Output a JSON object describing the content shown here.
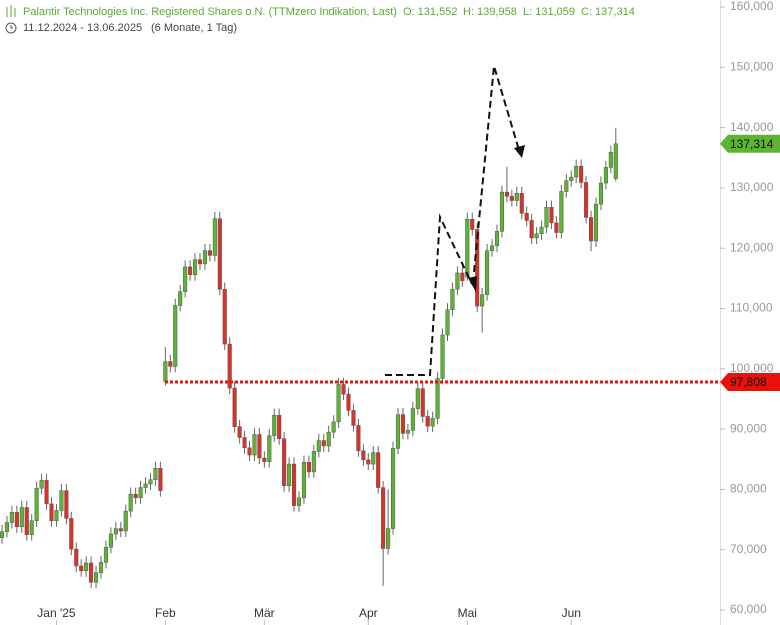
{
  "chart_data": {
    "type": "candlestick",
    "title": "Palantir Technologies Inc. Registered Shares o.N. (TTMzero Indikation, Last)",
    "ohlc_labels": [
      "O: 131,552",
      "H: 139,958",
      "L: 131,059",
      "C: 137,314"
    ],
    "date_range": "11.12.2024 - 13.06.2025",
    "period": "(6 Monate, 1 Tag)",
    "categories": [
      null,
      null,
      null,
      null,
      null,
      null,
      null,
      null,
      null,
      null,
      null,
      "Jan '25",
      null,
      null,
      null,
      null,
      null,
      null,
      null,
      null,
      null,
      null,
      null,
      null,
      null,
      null,
      null,
      null,
      null,
      null,
      null,
      null,
      null,
      "Feb",
      null,
      null,
      null,
      null,
      null,
      null,
      null,
      null,
      null,
      null,
      null,
      null,
      null,
      null,
      null,
      null,
      null,
      null,
      null,
      "Mär",
      null,
      null,
      null,
      null,
      null,
      null,
      null,
      null,
      null,
      null,
      null,
      null,
      null,
      null,
      null,
      null,
      null,
      null,
      null,
      null,
      "Apr",
      null,
      null,
      null,
      null,
      null,
      null,
      null,
      null,
      null,
      null,
      null,
      null,
      null,
      null,
      null,
      null,
      null,
      null,
      null,
      "Mai",
      null,
      null,
      null,
      null,
      null,
      null,
      null,
      null,
      null,
      null,
      null,
      null,
      null,
      null,
      null,
      null,
      null,
      null,
      null,
      null,
      "Jun",
      null,
      null,
      null,
      null,
      null,
      null,
      null,
      null,
      null
    ],
    "open": [
      72.0,
      73.0,
      74.5,
      76.2,
      73.8,
      77.0,
      72.5,
      74.8,
      80.2,
      81.5,
      77.6,
      74.8,
      76.5,
      79.8,
      75.2,
      70.1,
      67.3,
      66.5,
      67.8,
      64.6,
      66.2,
      67.9,
      70.4,
      72.6,
      73.5,
      73.1,
      76.4,
      79.2,
      78.6,
      80.3,
      80.9,
      81.6,
      83.5,
      97.9,
      101.2,
      100.4,
      110.5,
      112.8,
      116.9,
      115.6,
      118.1,
      117.4,
      119.6,
      118.8,
      124.9,
      113.2,
      104.1,
      96.8,
      90.4,
      88.6,
      86.9,
      85.7,
      89.1,
      85.2,
      84.6,
      88.9,
      92.3,
      88.4,
      80.6,
      84.2,
      77.3,
      78.6,
      84.5,
      82.9,
      86.3,
      88.1,
      87.2,
      89.5,
      91.2,
      97.4,
      95.8,
      93.1,
      90.6,
      86.4,
      84.9,
      84.2,
      86.1,
      80.3,
      70.2,
      73.5,
      86.8,
      92.4,
      89.3,
      89.8,
      93.4,
      96.7,
      92.1,
      90.5,
      91.8,
      98.4,
      105.6,
      109.8,
      113.2,
      115.9,
      115.2,
      124.8,
      123.1,
      110.4,
      112.3,
      119.6,
      120.4,
      122.8,
      129.3,
      128.6,
      127.9,
      129.1,
      125.8,
      124.6,
      121.7,
      122.4,
      123.5,
      126.8,
      124.2,
      122.6,
      129.4,
      131.2,
      131.8,
      133.6,
      130.9,
      125.1,
      121.2,
      127.3,
      130.8,
      133.4,
      131.552
    ],
    "high": [
      74.1,
      75.6,
      77.3,
      77.3,
      78.1,
      78.1,
      75.9,
      81.3,
      82.6,
      82.6,
      78.7,
      77.6,
      80.9,
      80.9,
      76.3,
      71.2,
      68.4,
      68.9,
      68.9,
      67.3,
      69.0,
      71.5,
      73.7,
      74.6,
      74.6,
      77.5,
      80.3,
      80.3,
      81.4,
      82.0,
      82.7,
      84.6,
      84.6,
      103.6,
      102.3,
      111.6,
      113.9,
      118.0,
      118.0,
      119.2,
      119.2,
      120.7,
      120.7,
      126.0,
      126.0,
      114.3,
      105.2,
      97.9,
      91.5,
      89.7,
      88.0,
      90.2,
      90.2,
      86.3,
      90.0,
      93.4,
      93.4,
      89.5,
      85.3,
      85.3,
      79.7,
      85.6,
      85.6,
      87.4,
      89.2,
      89.2,
      90.6,
      92.3,
      98.5,
      98.5,
      96.9,
      94.2,
      91.7,
      87.5,
      86.0,
      87.2,
      87.2,
      81.4,
      80.0,
      87.9,
      93.5,
      93.5,
      90.9,
      94.5,
      97.8,
      97.8,
      93.2,
      92.9,
      99.5,
      106.7,
      110.9,
      114.3,
      117.0,
      117.0,
      125.9,
      125.9,
      124.2,
      113.4,
      120.7,
      121.5,
      123.9,
      130.4,
      133.5,
      129.7,
      130.2,
      130.2,
      126.9,
      125.7,
      123.5,
      124.6,
      127.9,
      127.9,
      125.3,
      130.5,
      132.3,
      132.9,
      134.7,
      134.7,
      132.0,
      126.2,
      128.4,
      131.9,
      134.5,
      137.0,
      139.958
    ],
    "low": [
      71.0,
      72.0,
      73.5,
      72.8,
      72.8,
      71.5,
      71.5,
      73.8,
      79.2,
      76.6,
      73.8,
      73.8,
      75.5,
      74.2,
      69.1,
      66.3,
      65.5,
      65.5,
      63.6,
      63.6,
      65.2,
      66.9,
      69.4,
      71.6,
      72.1,
      72.1,
      75.4,
      77.6,
      77.6,
      79.3,
      79.9,
      80.6,
      78.8,
      97.2,
      99.4,
      99.4,
      109.5,
      111.8,
      114.6,
      114.6,
      116.4,
      116.4,
      117.8,
      117.8,
      112.2,
      103.1,
      95.8,
      89.4,
      87.6,
      85.9,
      84.7,
      84.7,
      84.2,
      83.6,
      83.6,
      87.9,
      87.4,
      79.6,
      79.6,
      76.3,
      76.3,
      77.6,
      81.9,
      81.9,
      85.3,
      86.2,
      86.2,
      88.5,
      90.2,
      94.8,
      92.1,
      89.6,
      85.4,
      83.9,
      83.2,
      83.2,
      79.3,
      64.0,
      69.2,
      72.5,
      85.8,
      88.3,
      88.3,
      88.8,
      92.4,
      91.1,
      89.5,
      89.5,
      90.8,
      97.4,
      104.6,
      108.8,
      112.2,
      113.6,
      114.6,
      122.1,
      109.4,
      106.0,
      111.3,
      118.6,
      119.4,
      121.8,
      127.6,
      126.9,
      126.9,
      124.8,
      123.6,
      120.7,
      120.7,
      121.4,
      122.5,
      123.2,
      121.6,
      121.6,
      128.4,
      130.2,
      130.8,
      129.9,
      124.1,
      119.5,
      120.2,
      126.3,
      129.8,
      132.4,
      131.059
    ],
    "close": [
      73.0,
      74.5,
      76.2,
      73.8,
      77.0,
      72.5,
      74.8,
      80.2,
      81.5,
      77.6,
      74.8,
      76.5,
      79.8,
      75.2,
      70.1,
      67.3,
      66.5,
      67.8,
      64.6,
      66.2,
      67.9,
      70.4,
      72.6,
      73.5,
      73.1,
      76.4,
      79.2,
      78.6,
      80.3,
      80.9,
      81.6,
      83.5,
      79.8,
      101.2,
      100.4,
      110.5,
      112.8,
      116.9,
      115.6,
      118.1,
      117.4,
      119.6,
      118.8,
      124.9,
      113.2,
      104.1,
      96.8,
      90.4,
      88.6,
      86.9,
      85.7,
      89.1,
      85.2,
      84.6,
      88.9,
      92.3,
      88.4,
      80.6,
      84.2,
      77.3,
      78.6,
      84.5,
      82.9,
      86.3,
      88.1,
      87.2,
      89.5,
      91.2,
      97.4,
      95.8,
      93.1,
      90.6,
      86.4,
      84.9,
      84.2,
      86.1,
      80.3,
      70.2,
      73.5,
      86.8,
      92.4,
      89.3,
      89.8,
      93.4,
      96.7,
      92.1,
      90.5,
      91.8,
      98.4,
      105.6,
      109.8,
      113.2,
      115.9,
      114.6,
      124.8,
      123.1,
      110.4,
      112.3,
      119.6,
      120.4,
      122.8,
      129.3,
      128.6,
      127.9,
      129.1,
      125.8,
      124.6,
      121.7,
      122.4,
      123.5,
      126.8,
      124.2,
      122.6,
      129.4,
      131.2,
      131.8,
      133.6,
      130.9,
      125.1,
      121.2,
      127.3,
      130.8,
      133.4,
      135.9,
      137.314
    ],
    "last_label": "137,314",
    "up_color": "#5cb531",
    "down_color": "#d9322b",
    "hline": {
      "value": 97.808,
      "label": "97,808",
      "color": "#e8120c"
    },
    "ylim": [
      60,
      160
    ],
    "yticks": [
      {
        "value": 60,
        "label": "60,000"
      },
      {
        "value": 70,
        "label": "70,000"
      },
      {
        "value": 80,
        "label": "80,000"
      },
      {
        "value": 90,
        "label": "90,000"
      },
      {
        "value": 100,
        "label": "100,000"
      },
      {
        "value": 110,
        "label": "110,000"
      },
      {
        "value": 120,
        "label": "120,000"
      },
      {
        "value": 130,
        "label": "130,000"
      },
      {
        "value": 140,
        "label": "140,000"
      },
      {
        "value": 150,
        "label": "150,000"
      },
      {
        "value": 160,
        "label": "160,000"
      }
    ]
  }
}
